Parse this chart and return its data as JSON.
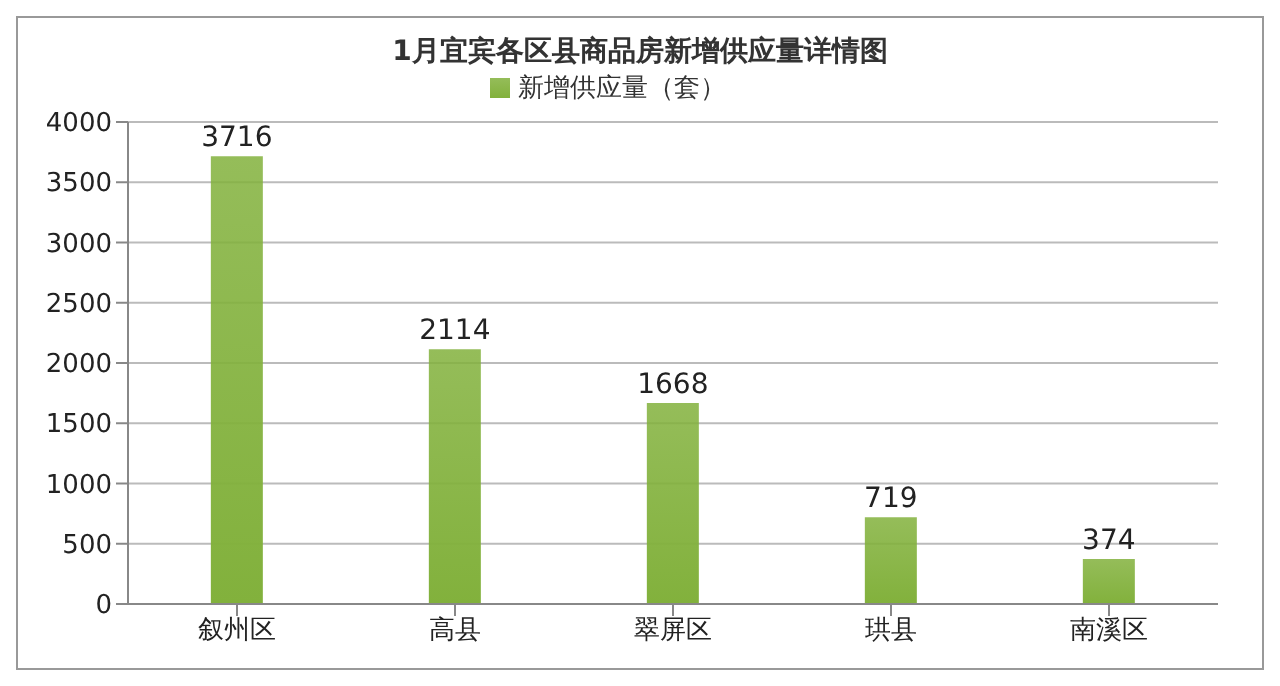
{
  "chart_data": {
    "type": "bar",
    "title": "1月宜宾各区县商品房新增供应量详情图",
    "categories": [
      "叙州区",
      "高县",
      "翠屏区",
      "珙县",
      "南溪区"
    ],
    "series": [
      {
        "name": "新增供应量（套）",
        "color": "#82b13c",
        "values": [
          3716,
          2114,
          1668,
          719,
          374
        ]
      }
    ],
    "ylim": [
      0,
      4000
    ],
    "yticks": [
      0,
      500,
      1000,
      1500,
      2000,
      2500,
      3000,
      3500,
      4000
    ],
    "grid": "y",
    "legend": "top",
    "data_labels": true
  }
}
